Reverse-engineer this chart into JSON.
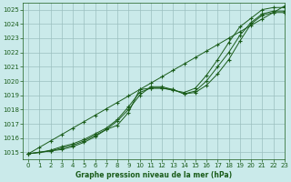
{
  "title": "Graphe pression niveau de la mer (hPa)",
  "bg_color": "#caeaea",
  "grid_color": "#9bbfbf",
  "line_color": "#1a5c1a",
  "xlim": [
    -0.5,
    23
  ],
  "ylim": [
    1014.5,
    1025.5
  ],
  "yticks": [
    1015,
    1016,
    1017,
    1018,
    1019,
    1020,
    1021,
    1022,
    1023,
    1024,
    1025
  ],
  "xticks": [
    0,
    1,
    2,
    3,
    4,
    5,
    6,
    7,
    8,
    9,
    10,
    11,
    12,
    13,
    14,
    15,
    16,
    17,
    18,
    19,
    20,
    21,
    22,
    23
  ],
  "line_straight": [
    1014.9,
    1015.35,
    1015.8,
    1016.25,
    1016.7,
    1017.15,
    1017.6,
    1018.05,
    1018.5,
    1018.95,
    1019.4,
    1019.85,
    1020.3,
    1020.75,
    1021.2,
    1021.65,
    1022.1,
    1022.55,
    1023.0,
    1023.45,
    1023.9,
    1024.35,
    1024.8,
    1025.25
  ],
  "line1": [
    1014.9,
    1015.0,
    1015.1,
    1015.2,
    1015.4,
    1015.7,
    1016.1,
    1016.6,
    1016.9,
    1017.8,
    1019.4,
    1019.5,
    1019.5,
    1019.4,
    1019.1,
    1019.2,
    1019.7,
    1020.5,
    1021.5,
    1022.8,
    1024.0,
    1024.6,
    1024.8,
    1024.8
  ],
  "line2": [
    1014.9,
    1015.0,
    1015.1,
    1015.3,
    1015.5,
    1015.8,
    1016.2,
    1016.6,
    1017.2,
    1018.0,
    1019.0,
    1019.6,
    1019.6,
    1019.4,
    1019.1,
    1019.3,
    1020.0,
    1021.0,
    1022.0,
    1023.2,
    1024.1,
    1024.7,
    1024.9,
    1024.9
  ],
  "line3": [
    1014.9,
    1015.0,
    1015.15,
    1015.4,
    1015.6,
    1015.9,
    1016.3,
    1016.7,
    1017.3,
    1018.2,
    1019.2,
    1019.5,
    1019.5,
    1019.35,
    1019.2,
    1019.5,
    1020.4,
    1021.5,
    1022.7,
    1023.8,
    1024.4,
    1025.0,
    1025.15,
    1025.15
  ]
}
